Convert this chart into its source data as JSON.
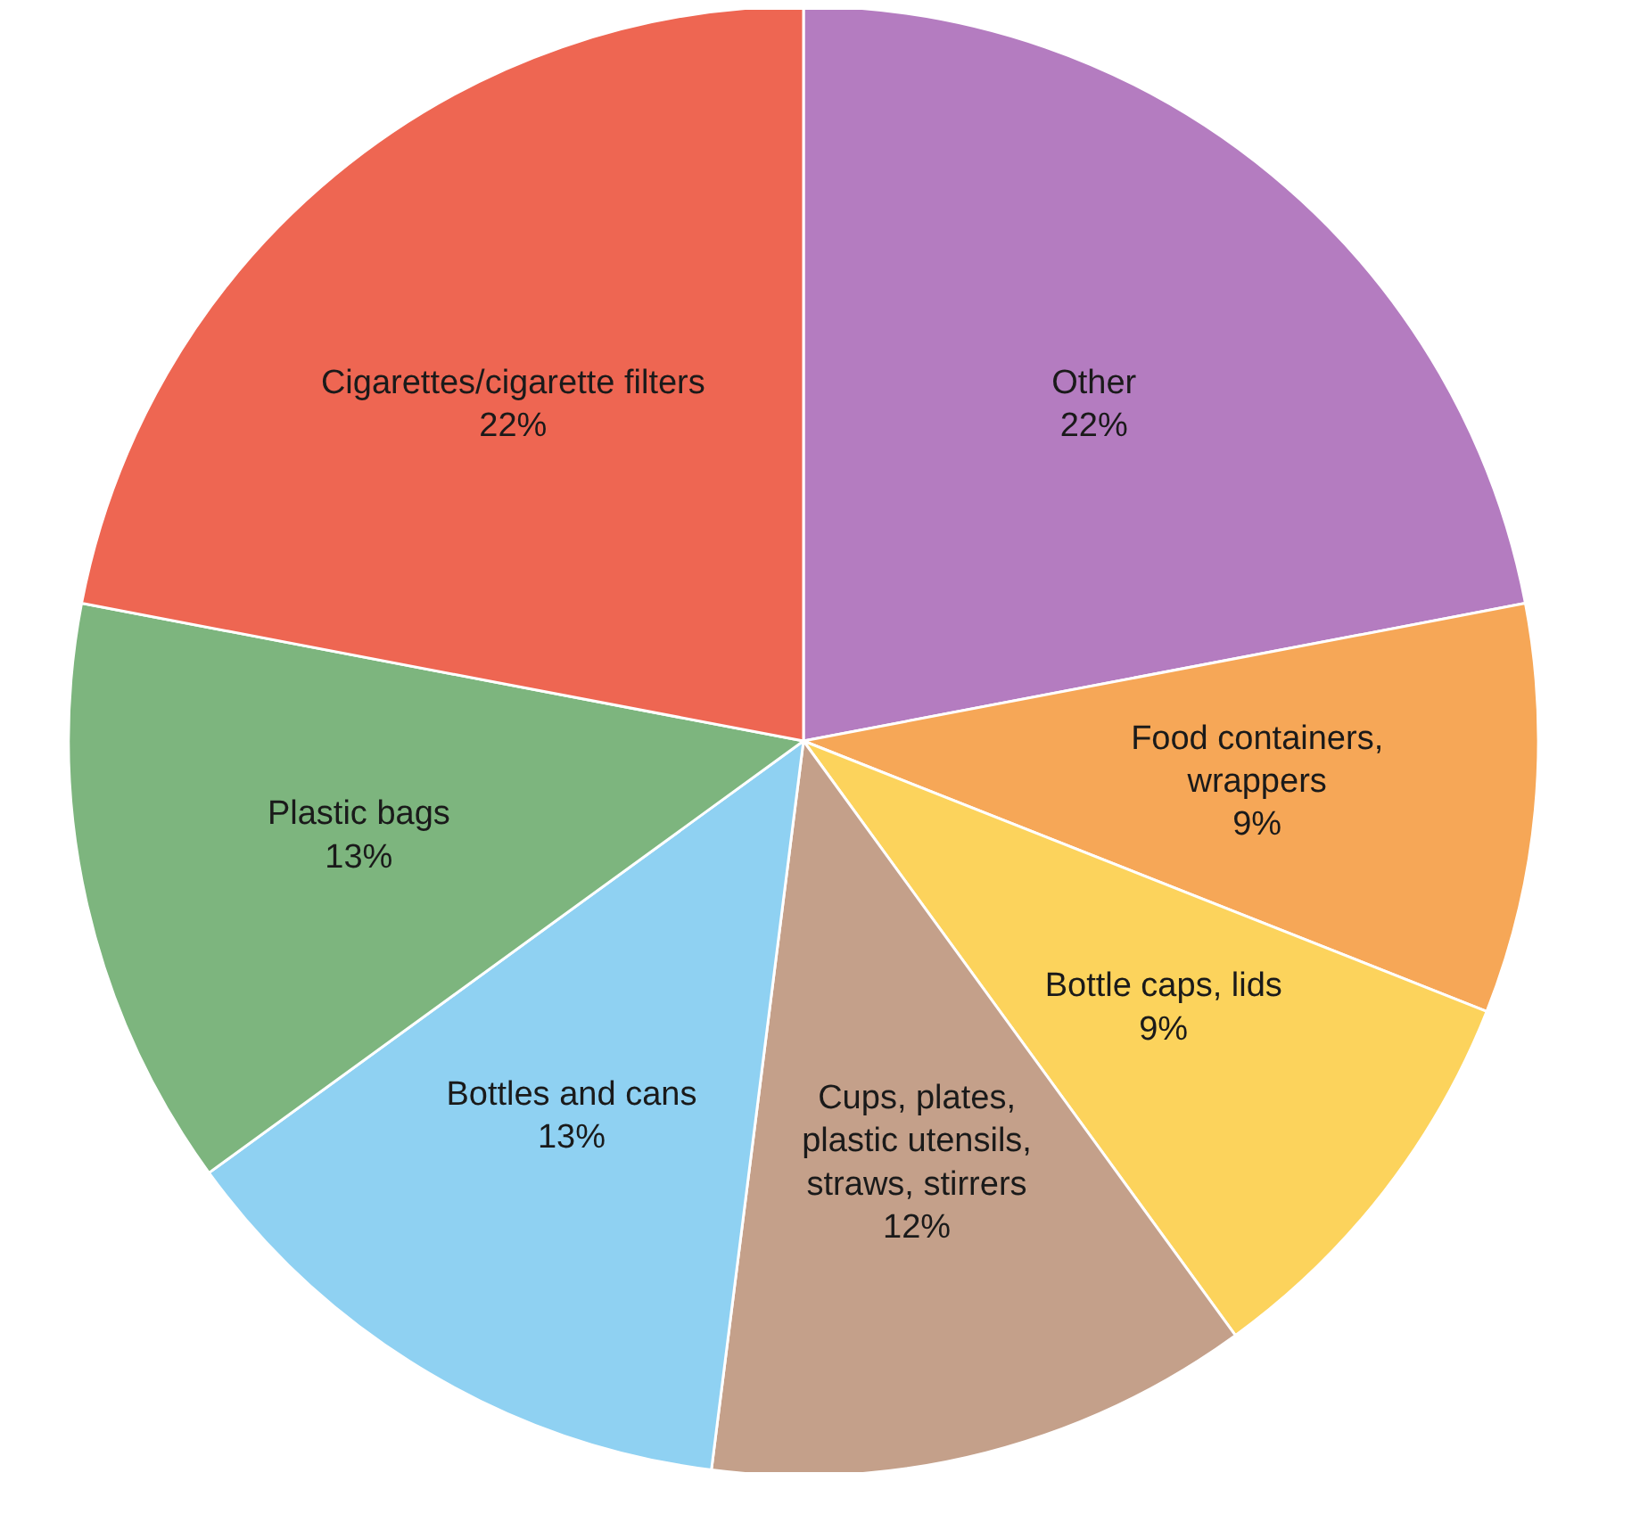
{
  "chart_data": {
    "type": "pie",
    "categories": [
      "Other",
      "Food containers,\nwrappers",
      "Bottle caps, lids",
      "Cups, plates,\nplastic utensils,\nstraws, stirrers",
      "Bottles and cans",
      "Plastic bags",
      "Cigarettes/cigarette filters"
    ],
    "values": [
      22,
      9,
      9,
      12,
      13,
      13,
      22
    ],
    "colors": [
      "#b47cc0",
      "#f6a757",
      "#fcd35c",
      "#c4a08a",
      "#8fd1f2",
      "#7db57e",
      "#ee6652"
    ],
    "value_labels": [
      "22%",
      "9%",
      "9%",
      "12%",
      "13%",
      "13%",
      "22%"
    ]
  }
}
